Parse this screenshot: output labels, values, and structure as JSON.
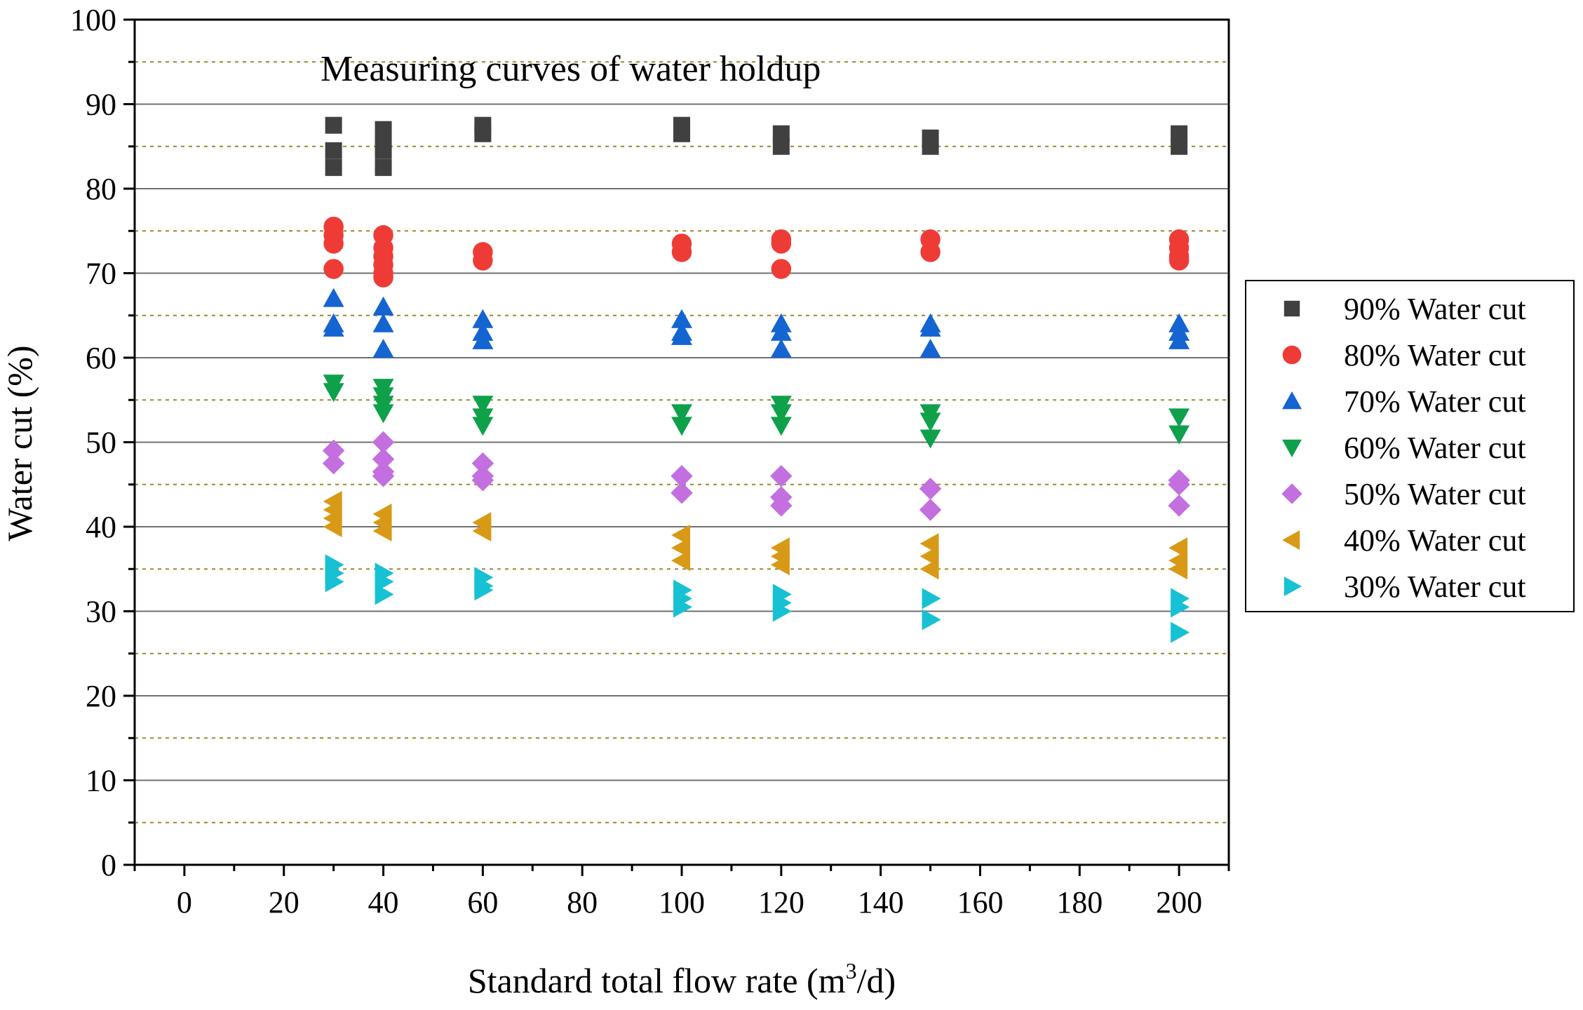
{
  "chart_data": {
    "type": "scatter",
    "title": "Measuring curves of water holdup",
    "xlabel": {
      "pre": "Standard total flow rate (m",
      "sup": "3",
      "post": "/d)"
    },
    "ylabel": "Water cut (%)",
    "xlim": [
      -10,
      210
    ],
    "ylim": [
      0,
      100
    ],
    "xticks": [
      0,
      20,
      40,
      60,
      80,
      100,
      120,
      140,
      160,
      180,
      200
    ],
    "yticks": [
      0,
      10,
      20,
      30,
      40,
      50,
      60,
      70,
      80,
      90,
      100
    ],
    "minor_grid_y": [
      5,
      15,
      25,
      35,
      45,
      55,
      65,
      75,
      85,
      95
    ],
    "grid": true,
    "legend_position": "right",
    "series": [
      {
        "name": "90% Water cut",
        "marker": "square",
        "color": "#404040",
        "points": [
          [
            30,
            87.5
          ],
          [
            30,
            84.5
          ],
          [
            30,
            82.5
          ],
          [
            40,
            87
          ],
          [
            40,
            85.5
          ],
          [
            40,
            84.5
          ],
          [
            40,
            82.5
          ],
          [
            60,
            87.5
          ],
          [
            60,
            86.5
          ],
          [
            100,
            87.5
          ],
          [
            100,
            86.5
          ],
          [
            120,
            86.5
          ],
          [
            120,
            85
          ],
          [
            150,
            86
          ],
          [
            150,
            85
          ],
          [
            200,
            86.5
          ],
          [
            200,
            85
          ]
        ]
      },
      {
        "name": "80% Water cut",
        "marker": "circle",
        "color": "#ef3b36",
        "points": [
          [
            30,
            75.5
          ],
          [
            30,
            74.5
          ],
          [
            30,
            73.5
          ],
          [
            30,
            70.5
          ],
          [
            40,
            74.5
          ],
          [
            40,
            73
          ],
          [
            40,
            72
          ],
          [
            40,
            71
          ],
          [
            40,
            70
          ],
          [
            40,
            69.5
          ],
          [
            60,
            72.5
          ],
          [
            60,
            71.5
          ],
          [
            100,
            73.5
          ],
          [
            100,
            72.5
          ],
          [
            120,
            74
          ],
          [
            120,
            73.5
          ],
          [
            120,
            70.5
          ],
          [
            150,
            74
          ],
          [
            150,
            72.5
          ],
          [
            200,
            74
          ],
          [
            200,
            73
          ],
          [
            200,
            72
          ],
          [
            200,
            71.5
          ]
        ]
      },
      {
        "name": "70% Water cut",
        "marker": "triangle-up",
        "color": "#1464d2",
        "points": [
          [
            30,
            67
          ],
          [
            30,
            64
          ],
          [
            30,
            63.5
          ],
          [
            40,
            66
          ],
          [
            40,
            64
          ],
          [
            40,
            61
          ],
          [
            60,
            64.5
          ],
          [
            60,
            63
          ],
          [
            60,
            62
          ],
          [
            100,
            64.5
          ],
          [
            100,
            63
          ],
          [
            100,
            62.5
          ],
          [
            120,
            64
          ],
          [
            120,
            63
          ],
          [
            120,
            61
          ],
          [
            150,
            64
          ],
          [
            150,
            63.5
          ],
          [
            150,
            61
          ],
          [
            200,
            64
          ],
          [
            200,
            63
          ],
          [
            200,
            62
          ]
        ]
      },
      {
        "name": "60% Water cut",
        "marker": "triangle-down",
        "color": "#0fa04a",
        "points": [
          [
            30,
            57
          ],
          [
            30,
            56
          ],
          [
            40,
            56.5
          ],
          [
            40,
            55.5
          ],
          [
            40,
            54.5
          ],
          [
            40,
            53.5
          ],
          [
            60,
            54.5
          ],
          [
            60,
            53
          ],
          [
            60,
            52
          ],
          [
            100,
            53.5
          ],
          [
            100,
            52
          ],
          [
            120,
            54.5
          ],
          [
            120,
            53.5
          ],
          [
            120,
            52
          ],
          [
            150,
            53.5
          ],
          [
            150,
            52.5
          ],
          [
            150,
            50.5
          ],
          [
            200,
            53
          ],
          [
            200,
            51
          ]
        ]
      },
      {
        "name": "50% Water cut",
        "marker": "diamond",
        "color": "#c36fe0",
        "points": [
          [
            30,
            49
          ],
          [
            30,
            47.5
          ],
          [
            40,
            50
          ],
          [
            40,
            48
          ],
          [
            40,
            46.5
          ],
          [
            40,
            46
          ],
          [
            60,
            47.5
          ],
          [
            60,
            46
          ],
          [
            60,
            45.5
          ],
          [
            100,
            46
          ],
          [
            100,
            44
          ],
          [
            120,
            46
          ],
          [
            120,
            43.5
          ],
          [
            120,
            42.5
          ],
          [
            150,
            44.5
          ],
          [
            150,
            42
          ],
          [
            200,
            45.5
          ],
          [
            200,
            45
          ],
          [
            200,
            42.5
          ]
        ]
      },
      {
        "name": "40% Water cut",
        "marker": "triangle-left",
        "color": "#d89a16",
        "points": [
          [
            30,
            43
          ],
          [
            30,
            42
          ],
          [
            30,
            41
          ],
          [
            30,
            40
          ],
          [
            40,
            41.5
          ],
          [
            40,
            40.5
          ],
          [
            40,
            39.5
          ],
          [
            60,
            40.5
          ],
          [
            60,
            39.5
          ],
          [
            100,
            39
          ],
          [
            100,
            37.5
          ],
          [
            100,
            36
          ],
          [
            120,
            37.5
          ],
          [
            120,
            36.5
          ],
          [
            120,
            35.5
          ],
          [
            150,
            38
          ],
          [
            150,
            36.5
          ],
          [
            150,
            35
          ],
          [
            200,
            37.5
          ],
          [
            200,
            36
          ],
          [
            200,
            35
          ]
        ]
      },
      {
        "name": "30% Water cut",
        "marker": "triangle-right",
        "color": "#17c1d4",
        "points": [
          [
            30,
            35.5
          ],
          [
            30,
            34.5
          ],
          [
            30,
            33.5
          ],
          [
            40,
            34.5
          ],
          [
            40,
            33.5
          ],
          [
            40,
            32
          ],
          [
            60,
            34
          ],
          [
            60,
            33
          ],
          [
            60,
            32.5
          ],
          [
            100,
            32.5
          ],
          [
            100,
            31.5
          ],
          [
            100,
            30.5
          ],
          [
            120,
            32
          ],
          [
            120,
            31
          ],
          [
            120,
            30
          ],
          [
            150,
            31.5
          ],
          [
            150,
            29
          ],
          [
            200,
            31.5
          ],
          [
            200,
            30.5
          ],
          [
            200,
            27.5
          ]
        ]
      }
    ]
  }
}
